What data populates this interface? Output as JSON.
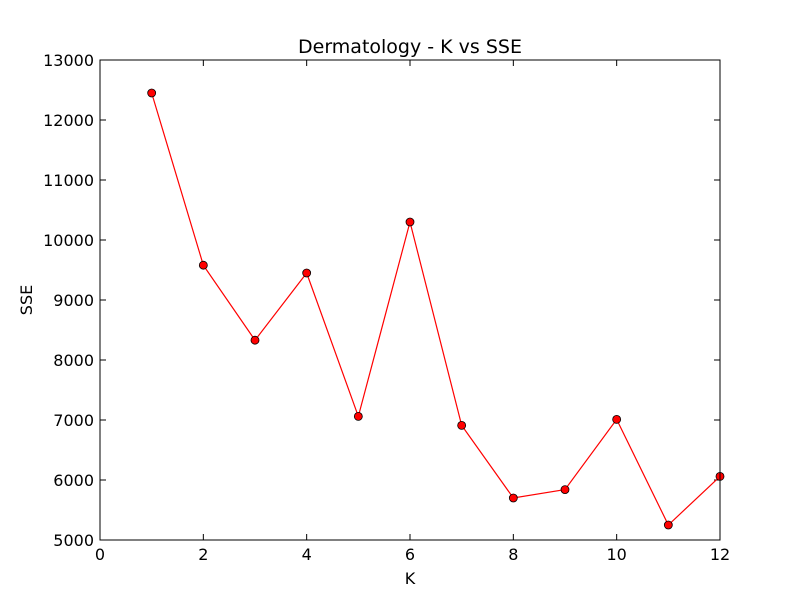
{
  "chart_data": {
    "type": "line",
    "title": "Dermatology - K vs SSE",
    "xlabel": "K",
    "ylabel": "SSE",
    "xlim": [
      0,
      12
    ],
    "ylim": [
      5000,
      13000
    ],
    "xticks": [
      0,
      2,
      4,
      6,
      8,
      10,
      12
    ],
    "yticks": [
      5000,
      6000,
      7000,
      8000,
      9000,
      10000,
      11000,
      12000,
      13000
    ],
    "grid": false,
    "series": [
      {
        "color": "#ff0000",
        "marker": "circle",
        "x": [
          1,
          2,
          3,
          4,
          5,
          6,
          7,
          8,
          9,
          10,
          11,
          12
        ],
        "y": [
          12450,
          9580,
          8330,
          9450,
          7060,
          10300,
          6910,
          5700,
          5840,
          7010,
          5250,
          6060
        ]
      }
    ]
  }
}
